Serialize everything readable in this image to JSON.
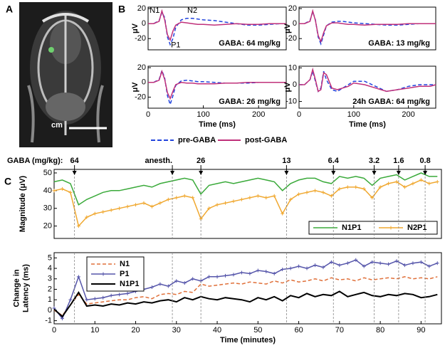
{
  "panel_labels": [
    "A",
    "B",
    "C"
  ],
  "image": {
    "scale_label": "cm"
  },
  "chart_data": [
    {
      "type": "line",
      "ylabel": "μV",
      "annotation": "GABA: 64 mg/kg",
      "xlim": [
        0,
        250
      ],
      "ylim": [
        -35,
        22
      ],
      "yticks": [
        -20,
        0,
        20
      ],
      "point_labels": [
        {
          "text": "N1",
          "x": 12,
          "y": 17
        },
        {
          "text": "N2",
          "x": 80,
          "y": 17
        },
        {
          "text": "P1",
          "x": 50,
          "y": -29
        }
      ],
      "x": [
        0,
        10,
        20,
        25,
        30,
        35,
        40,
        45,
        50,
        60,
        70,
        80,
        90,
        100,
        120,
        140,
        160,
        180,
        200,
        220,
        240,
        250
      ],
      "series": [
        {
          "name": "pre-GABA",
          "color": "#2244dd",
          "style": "dashed",
          "values": [
            0,
            0,
            4,
            15,
            8,
            -18,
            -28,
            -20,
            -5,
            5,
            7,
            7,
            6,
            5,
            4,
            2,
            0,
            -2,
            -2,
            -1,
            0,
            0
          ]
        },
        {
          "name": "post-GABA",
          "color": "#c0307a",
          "style": "solid",
          "values": [
            0,
            0,
            3,
            17,
            5,
            -15,
            -22,
            -10,
            -2,
            2,
            1,
            0,
            -1,
            -1,
            -2,
            -1,
            0,
            -1,
            -1,
            0,
            0,
            0
          ]
        }
      ]
    },
    {
      "type": "line",
      "ylabel": "μV",
      "annotation": "GABA: 13 mg/kg",
      "xlim": [
        0,
        250
      ],
      "ylim": [
        -35,
        22
      ],
      "yticks": [
        -20,
        0,
        20
      ],
      "x": [
        0,
        10,
        20,
        25,
        30,
        35,
        40,
        45,
        50,
        60,
        70,
        80,
        90,
        100,
        120,
        140,
        160,
        180,
        200,
        220,
        240,
        250
      ],
      "series": [
        {
          "color": "#2244dd",
          "style": "dashed",
          "values": [
            0,
            0,
            4,
            16,
            5,
            -18,
            -27,
            -15,
            -3,
            2,
            3,
            3,
            2,
            1,
            0,
            -1,
            -2,
            -2,
            -1,
            0,
            0,
            0
          ]
        },
        {
          "color": "#c0307a",
          "style": "solid",
          "values": [
            0,
            0,
            3,
            17,
            4,
            -16,
            -24,
            -12,
            -3,
            1,
            1,
            0,
            -1,
            -1,
            -2,
            -1,
            -1,
            -1,
            0,
            0,
            0,
            0
          ]
        }
      ]
    },
    {
      "type": "line",
      "ylabel": "μV",
      "xlabel": "Time (ms)",
      "annotation": "GABA: 26 mg/kg",
      "xlim": [
        0,
        250
      ],
      "ylim": [
        -35,
        22
      ],
      "yticks": [
        -20,
        0,
        20
      ],
      "xticks": [
        0,
        100,
        200
      ],
      "x": [
        0,
        10,
        20,
        25,
        30,
        35,
        40,
        45,
        50,
        60,
        70,
        80,
        90,
        100,
        120,
        140,
        160,
        180,
        200,
        220,
        240,
        250
      ],
      "series": [
        {
          "color": "#2244dd",
          "style": "dashed",
          "values": [
            0,
            0,
            4,
            16,
            6,
            -18,
            -30,
            -18,
            -4,
            2,
            3,
            2,
            1,
            1,
            0,
            -1,
            -1,
            -1,
            0,
            0,
            0,
            0
          ]
        },
        {
          "color": "#c0307a",
          "style": "solid",
          "values": [
            0,
            0,
            3,
            15,
            4,
            -14,
            -22,
            -12,
            -3,
            0,
            -1,
            -1,
            -2,
            -2,
            -2,
            -1,
            -1,
            0,
            0,
            0,
            0,
            0
          ]
        }
      ]
    },
    {
      "type": "line",
      "ylabel": "μV",
      "xlabel": "Time (ms)",
      "annotation": "24h GABA: 64 mg/kg",
      "xlim": [
        0,
        250
      ],
      "ylim": [
        -14,
        11
      ],
      "yticks": [
        -10,
        0,
        10
      ],
      "xticks": [
        0,
        100,
        200
      ],
      "x": [
        0,
        10,
        20,
        25,
        30,
        35,
        40,
        45,
        50,
        60,
        70,
        80,
        90,
        100,
        120,
        140,
        160,
        180,
        200,
        220,
        240,
        250
      ],
      "series": [
        {
          "color": "#2244dd",
          "style": "dashed",
          "values": [
            0,
            0,
            3,
            8,
            2,
            -4,
            -2,
            8,
            3,
            -3,
            -4,
            -2,
            0,
            2,
            2,
            -1,
            -4,
            -3,
            -1,
            0,
            0,
            0
          ]
        },
        {
          "color": "#c0307a",
          "style": "solid",
          "values": [
            0,
            0,
            3,
            9,
            3,
            -4,
            -3,
            7,
            6,
            -2,
            -3,
            -2,
            -1,
            1,
            0,
            -2,
            -4,
            -3,
            -2,
            -1,
            -1,
            0
          ]
        }
      ]
    },
    {
      "type": "line",
      "ylabel": [
        "Magnitude (μV)"
      ],
      "xlim": [
        0,
        95
      ],
      "ylim": [
        13,
        52
      ],
      "yticks": [
        20,
        30,
        40,
        50
      ],
      "legend": "lower right",
      "events_title": "GABA (mg/kg):",
      "events": [
        {
          "x": 5,
          "label": "64"
        },
        {
          "x": 29,
          "label": "anesth."
        },
        {
          "x": 36,
          "label": "26"
        },
        {
          "x": 57,
          "label": "13"
        },
        {
          "x": 68.5,
          "label": "6.4"
        },
        {
          "x": 78.5,
          "label": "3.2"
        },
        {
          "x": 84.5,
          "label": "1.6"
        },
        {
          "x": 91,
          "label": "0.8"
        }
      ],
      "x": [
        0,
        2,
        4,
        6,
        8,
        10,
        12,
        14,
        16,
        18,
        20,
        22,
        24,
        26,
        28,
        30,
        32,
        34,
        36,
        38,
        40,
        42,
        44,
        46,
        48,
        50,
        52,
        54,
        56,
        58,
        60,
        62,
        64,
        66,
        68,
        70,
        72,
        74,
        76,
        78,
        80,
        82,
        84,
        86,
        88,
        90,
        92,
        94
      ],
      "series": [
        {
          "name": "N1P1",
          "color": "#3aaa3a",
          "style": "solid",
          "values": [
            45,
            46,
            44,
            32,
            35,
            37,
            39,
            40,
            40,
            41,
            42,
            43,
            42,
            44,
            45,
            46,
            47,
            46,
            38,
            43,
            44,
            45,
            44,
            45,
            46,
            47,
            46,
            45,
            40,
            44,
            46,
            47,
            47,
            45,
            44,
            48,
            47,
            48,
            47,
            43,
            47,
            48,
            49,
            46,
            48,
            50,
            48,
            48
          ]
        },
        {
          "name": "N2P1",
          "color": "#f0a830",
          "style": "solid",
          "marker": "plus",
          "values": [
            40,
            41,
            39,
            20,
            25,
            27,
            28,
            29,
            30,
            31,
            32,
            33,
            31,
            33,
            35,
            36,
            37,
            36,
            24,
            30,
            32,
            33,
            34,
            35,
            36,
            37,
            36,
            37,
            27,
            35,
            38,
            39,
            40,
            39,
            37,
            41,
            42,
            42,
            41,
            36,
            42,
            44,
            45,
            42,
            44,
            46,
            44,
            45
          ]
        }
      ]
    },
    {
      "type": "line",
      "ylabel": [
        "Change in",
        "Latency (ms)"
      ],
      "xlabel": "Time (minutes)",
      "xlim": [
        0,
        95
      ],
      "ylim": [
        -1.3,
        5.5
      ],
      "yticks": [
        -1,
        0,
        1,
        2,
        3,
        4,
        5
      ],
      "xticks": [
        0,
        10,
        20,
        30,
        40,
        50,
        60,
        70,
        80,
        90
      ],
      "legend": "upper left",
      "x": [
        0,
        2,
        4,
        6,
        8,
        10,
        12,
        14,
        16,
        18,
        20,
        22,
        24,
        26,
        28,
        30,
        32,
        34,
        36,
        38,
        40,
        42,
        44,
        46,
        48,
        50,
        52,
        54,
        56,
        58,
        60,
        62,
        64,
        66,
        68,
        70,
        72,
        74,
        76,
        78,
        80,
        82,
        84,
        86,
        88,
        90,
        92,
        94
      ],
      "series": [
        {
          "name": "N1",
          "color": "#e0703a",
          "style": "dashed",
          "values": [
            0,
            -0.5,
            0.5,
            1.5,
            0.6,
            0.7,
            0.8,
            0.9,
            1.0,
            1.0,
            1.2,
            1.3,
            1.1,
            1.5,
            1.6,
            1.5,
            1.8,
            1.7,
            2.5,
            2.3,
            2.4,
            2.5,
            2.6,
            2.5,
            2.7,
            2.6,
            2.5,
            2.8,
            2.6,
            2.9,
            2.7,
            2.8,
            3.0,
            2.8,
            3.1,
            2.9,
            3.0,
            2.8,
            3.1,
            2.9,
            3.0,
            3.1,
            3.0,
            3.2,
            3.0,
            3.1,
            3.0,
            3.2
          ]
        },
        {
          "name": "P1",
          "color": "#5555aa",
          "style": "solid",
          "marker": "plus",
          "values": [
            0.2,
            -0.8,
            1.0,
            3.2,
            1.0,
            1.1,
            1.2,
            1.4,
            1.5,
            1.6,
            1.8,
            2.0,
            2.2,
            2.5,
            2.3,
            2.8,
            2.6,
            3.0,
            2.8,
            3.2,
            3.2,
            3.3,
            3.4,
            3.6,
            3.5,
            3.8,
            3.7,
            3.5,
            3.9,
            4.0,
            4.2,
            4.0,
            4.3,
            4.1,
            4.6,
            4.3,
            4.5,
            4.8,
            4.2,
            4.6,
            4.5,
            4.4,
            4.7,
            4.3,
            4.5,
            4.6,
            4.2,
            4.5
          ]
        },
        {
          "name": "N1P1",
          "color": "#000000",
          "style": "solid",
          "width": 2,
          "values": [
            0.1,
            -0.6,
            0.5,
            1.7,
            0.4,
            0.5,
            0.4,
            0.6,
            0.5,
            0.7,
            0.6,
            0.8,
            0.7,
            0.9,
            1.0,
            0.8,
            1.2,
            1.0,
            1.3,
            1.1,
            1.0,
            1.2,
            1.1,
            1.0,
            0.8,
            1.2,
            1.0,
            1.3,
            0.9,
            1.4,
            1.2,
            1.6,
            1.3,
            1.5,
            1.4,
            1.8,
            1.3,
            1.5,
            1.7,
            1.4,
            1.3,
            1.5,
            1.4,
            1.6,
            1.5,
            1.2,
            1.3,
            1.5
          ]
        }
      ]
    }
  ]
}
